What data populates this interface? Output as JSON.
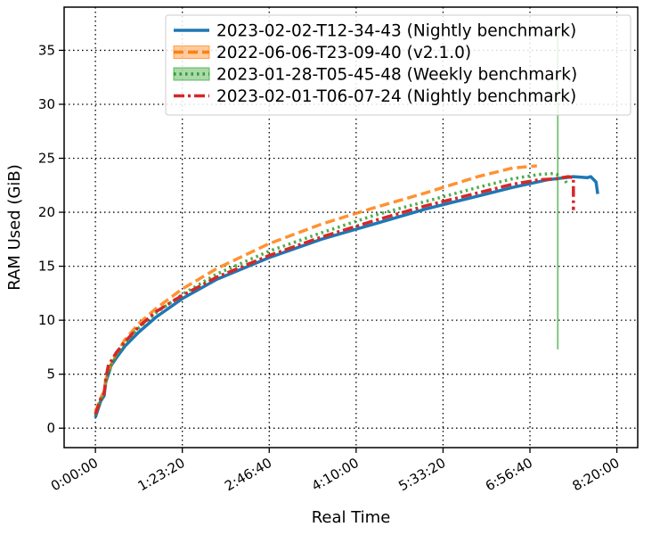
{
  "chart_data": {
    "type": "line",
    "xlabel": "Real Time",
    "ylabel": "RAM Used (GiB)",
    "x_unit": "seconds",
    "xlim": [
      -1800,
      31200
    ],
    "ylim": [
      -1.8,
      39.0
    ],
    "x_ticks": [
      {
        "value": 0,
        "label": "0:00:00"
      },
      {
        "value": 5000,
        "label": "1:23:20"
      },
      {
        "value": 10000,
        "label": "2:46:40"
      },
      {
        "value": 15000,
        "label": "4:10:00"
      },
      {
        "value": 20000,
        "label": "5:33:20"
      },
      {
        "value": 25000,
        "label": "6:56:40"
      },
      {
        "value": 30000,
        "label": "8:20:00"
      }
    ],
    "y_ticks": [
      0,
      5,
      10,
      15,
      20,
      25,
      30,
      35
    ],
    "grid": true,
    "legend_position": "top-right",
    "series": [
      {
        "name": "2023-02-02-T12-34-43 (Nightly benchmark)",
        "color": "#1f77b4",
        "style": "solid",
        "x": [
          0,
          300,
          500,
          600,
          750,
          900,
          1200,
          1700,
          2500,
          3500,
          5000,
          7000,
          10000,
          13000,
          16000,
          19000,
          22000,
          24000,
          26000,
          27500,
          28300,
          28500,
          28800,
          28900
        ],
        "y": [
          1.0,
          2.5,
          3.0,
          4.3,
          5.0,
          5.8,
          6.5,
          7.6,
          8.9,
          10.3,
          12.0,
          13.8,
          15.8,
          17.5,
          18.9,
          20.3,
          21.5,
          22.3,
          23.0,
          23.3,
          23.2,
          23.3,
          22.8,
          21.7
        ]
      },
      {
        "name": "2022-06-06-T23-09-40 (v2.1.0)",
        "color": "#ff7f0e",
        "style": "dashed",
        "x": [
          0,
          300,
          500,
          600,
          750,
          900,
          1200,
          1700,
          2500,
          3500,
          5000,
          7000,
          10000,
          13000,
          16000,
          19000,
          22000,
          24000,
          25400
        ],
        "y": [
          1.5,
          2.8,
          3.4,
          4.5,
          5.2,
          5.9,
          6.9,
          8.2,
          9.7,
          11.1,
          12.9,
          14.8,
          17.1,
          18.9,
          20.4,
          21.8,
          23.3,
          24.1,
          24.3
        ]
      },
      {
        "name": "2023-01-28-T05-45-48 (Weekly benchmark)",
        "color": "#2ca02c",
        "style": "dotted",
        "x": [
          0,
          300,
          500,
          600,
          750,
          900,
          1200,
          1700,
          2500,
          3500,
          5000,
          7000,
          10000,
          13000,
          16000,
          19000,
          22000,
          24000,
          25500,
          26400,
          26700,
          27000,
          27200
        ],
        "y": [
          1.2,
          2.6,
          3.1,
          4.4,
          5.0,
          5.8,
          6.7,
          7.9,
          9.3,
          10.7,
          12.4,
          14.3,
          16.4,
          18.1,
          19.7,
          21.0,
          22.3,
          23.1,
          23.5,
          23.6,
          23.4,
          23.0,
          22.5
        ],
        "spike": {
          "x": 26600,
          "y_min": 7.3,
          "y_max": 36.8
        }
      },
      {
        "name": "2023-02-01-T06-07-24 (Nightly benchmark)",
        "color": "#d62728",
        "style": "dashdot",
        "x": [
          0,
          300,
          500,
          600,
          750,
          900,
          1200,
          1700,
          2500,
          3500,
          5000,
          7000,
          10000,
          13000,
          16000,
          19000,
          22000,
          24000,
          25500,
          26500,
          27200,
          27500,
          27500
        ],
        "y": [
          1.3,
          2.7,
          3.2,
          4.6,
          5.9,
          6.2,
          7.0,
          8.0,
          9.4,
          10.8,
          12.3,
          14.0,
          16.0,
          17.7,
          19.2,
          20.6,
          21.8,
          22.6,
          23.0,
          23.1,
          23.3,
          23.2,
          20.2
        ]
      }
    ]
  }
}
